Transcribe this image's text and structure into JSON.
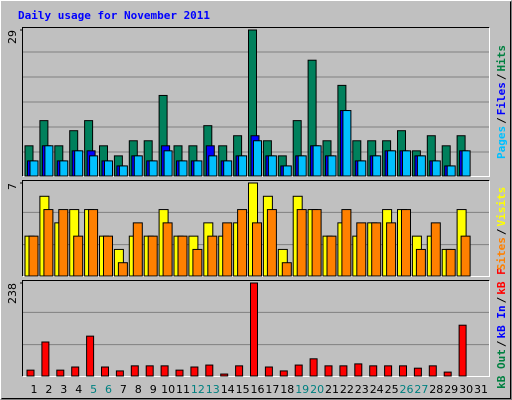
{
  "chart_data": {
    "type": "bar",
    "title": "Daily usage for November 2011",
    "categories": [
      "1",
      "2",
      "3",
      "4",
      "5",
      "6",
      "7",
      "8",
      "9",
      "10",
      "11",
      "12",
      "13",
      "14",
      "15",
      "16",
      "17",
      "18",
      "19",
      "20",
      "21",
      "22",
      "23",
      "24",
      "25",
      "26",
      "27",
      "28",
      "29",
      "30",
      "31"
    ],
    "category_colors": [
      "#000000",
      "#000000",
      "#000000",
      "#000000",
      "#008080",
      "#008080",
      "#000000",
      "#000000",
      "#000000",
      "#000000",
      "#000000",
      "#008080",
      "#008080",
      "#000000",
      "#000000",
      "#000000",
      "#000000",
      "#000000",
      "#008080",
      "#008080",
      "#000000",
      "#000000",
      "#000000",
      "#000000",
      "#000000",
      "#008080",
      "#008080",
      "#000000",
      "#000000",
      "#000000",
      "#000000"
    ],
    "separator": "/",
    "panels": [
      {
        "ylim": [
          0,
          29
        ],
        "yticks": [
          29
        ],
        "series": [
          {
            "name": "Hits",
            "color": "#00805c",
            "label_color": "#008040",
            "values": [
              6,
              11,
              6,
              9,
              11,
              6,
              4,
              7,
              7,
              16,
              6,
              6,
              10,
              6,
              8,
              29,
              7,
              4,
              11,
              23,
              7,
              18,
              7,
              7,
              7,
              9,
              5,
              8,
              6,
              8,
              0
            ]
          },
          {
            "name": "Files",
            "color": "#0000ff",
            "label_color": "#0000ff",
            "values": [
              3,
              6,
              3,
              5,
              5,
              3,
              2,
              4,
              3,
              6,
              3,
              3,
              6,
              3,
              4,
              8,
              4,
              2,
              4,
              6,
              4,
              13,
              3,
              4,
              5,
              5,
              4,
              3,
              2,
              5,
              0
            ]
          },
          {
            "name": "Pages",
            "color": "#00c0ff",
            "label_color": "#00c0ff",
            "values": [
              3,
              6,
              3,
              5,
              4,
              3,
              2,
              4,
              3,
              5,
              3,
              3,
              4,
              3,
              4,
              7,
              4,
              2,
              4,
              6,
              4,
              13,
              3,
              4,
              5,
              5,
              4,
              3,
              2,
              5,
              0
            ]
          }
        ]
      },
      {
        "ylim": [
          0,
          7
        ],
        "yticks": [
          7
        ],
        "series": [
          {
            "name": "Visits",
            "color": "#ffff00",
            "label_color": "#ffff00",
            "values": [
              3,
              6,
              4,
              5,
              5,
              3,
              2,
              3,
              3,
              5,
              3,
              3,
              4,
              3,
              4,
              7,
              6,
              2,
              6,
              5,
              3,
              4,
              3,
              4,
              5,
              5,
              3,
              3,
              2,
              5,
              0
            ]
          },
          {
            "name": "Sites",
            "color": "#ff8000",
            "label_color": "#ff8000",
            "values": [
              3,
              5,
              5,
              3,
              5,
              3,
              1,
              4,
              3,
              4,
              3,
              2,
              3,
              4,
              5,
              4,
              5,
              1,
              5,
              5,
              3,
              5,
              4,
              4,
              4,
              5,
              2,
              4,
              2,
              3,
              0
            ]
          }
        ]
      },
      {
        "ylim": [
          0,
          238
        ],
        "yticks": [
          238
        ],
        "series": [
          {
            "name": "kB F",
            "color": "#ff0000",
            "label_color": "#ff0000",
            "values": [
              15,
              87,
              15,
              23,
              102,
              23,
              13,
              26,
              26,
              26,
              15,
              23,
              28,
              5,
              26,
              238,
              23,
              13,
              28,
              44,
              26,
              26,
              31,
              26,
              26,
              26,
              20,
              26,
              10,
              130,
              0
            ]
          },
          {
            "name": "kB In",
            "color": "#0000ff",
            "label_color": "#0000ff",
            "values": [
              0,
              0,
              0,
              0,
              0,
              0,
              0,
              0,
              0,
              0,
              0,
              0,
              0,
              0,
              0,
              0,
              0,
              0,
              0,
              0,
              0,
              0,
              0,
              0,
              0,
              0,
              0,
              0,
              0,
              0,
              0
            ]
          },
          {
            "name": "kB Out",
            "color": "#00805c",
            "label_color": "#008040",
            "values": [
              0,
              0,
              0,
              0,
              0,
              0,
              0,
              0,
              0,
              0,
              0,
              0,
              0,
              0,
              0,
              0,
              0,
              0,
              0,
              0,
              0,
              0,
              0,
              0,
              0,
              0,
              0,
              0,
              0,
              0,
              0
            ]
          }
        ]
      }
    ]
  }
}
